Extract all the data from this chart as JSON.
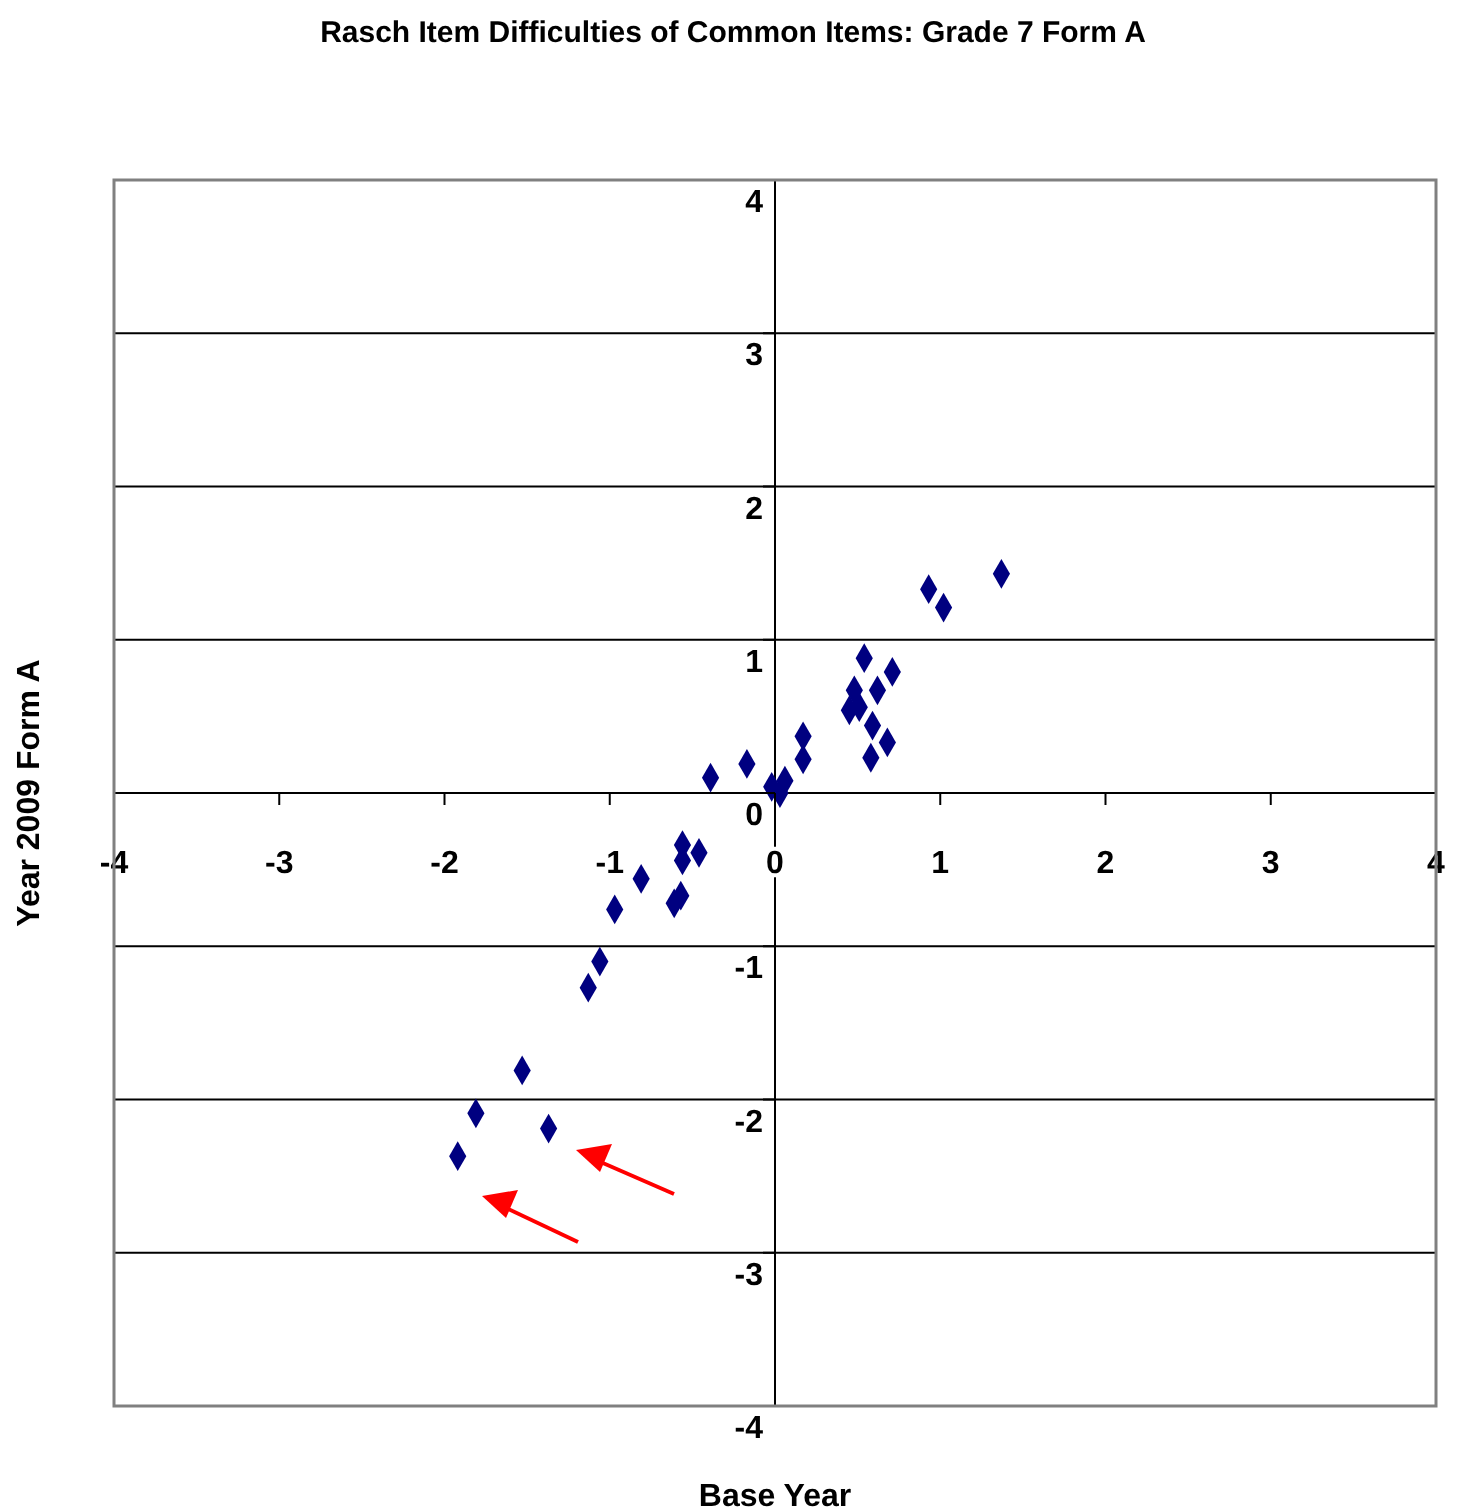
{
  "chart_data": {
    "type": "scatter",
    "title": "Rasch Item Difficulties of Common Items: Grade 7 Form A",
    "xlabel": "Base Year",
    "ylabel": "Year 2009 Form A",
    "x": [
      1.37,
      0.93,
      1.02,
      0.54,
      0.71,
      0.48,
      0.62,
      0.45,
      0.51,
      0.59,
      0.68,
      0.58,
      0.17,
      0.17,
      -0.17,
      -0.39,
      0.06,
      -0.02,
      0.03,
      -0.56,
      -0.46,
      -0.56,
      -0.81,
      -0.57,
      -0.61,
      -0.97,
      -1.06,
      -1.13,
      -1.53,
      -1.81,
      -1.37,
      -1.92
    ],
    "values": [
      1.43,
      1.33,
      1.21,
      0.88,
      0.79,
      0.67,
      0.67,
      0.54,
      0.56,
      0.44,
      0.33,
      0.23,
      0.37,
      0.22,
      0.19,
      0.1,
      0.08,
      0.04,
      0.0,
      -0.34,
      -0.39,
      -0.44,
      -0.56,
      -0.67,
      -0.72,
      -0.76,
      -1.1,
      -1.27,
      -1.81,
      -2.09,
      -2.19,
      -2.37
    ],
    "color": "#000080",
    "marker": "diamond",
    "xlim": [
      -4,
      4
    ],
    "ylim": [
      -4,
      4
    ],
    "xticks": [
      -4,
      -3,
      -2,
      -1,
      0,
      1,
      2,
      3,
      4
    ],
    "yticks": [
      -4,
      -3,
      -2,
      -1,
      0,
      1,
      2,
      3,
      4
    ],
    "grid": "y",
    "legend": false
  }
}
